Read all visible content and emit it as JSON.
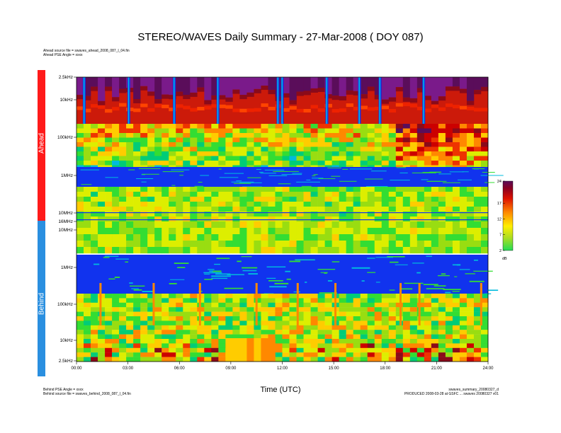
{
  "title": "STEREO/WAVES Daily Summary - 27-Mar-2008 ( DOY 087)",
  "header_info": {
    "line1": "Ahead source file = swaves_ahead_2008_087_l_04.fin",
    "line2": "Ahead PSE Angle = xxxx"
  },
  "footer_left": {
    "line1": "Behind PSE Angle = xxxx",
    "line2": "Behind source file = swaves_behind_2008_087_l_04.fin"
  },
  "footer_right": {
    "line1": "swaves_summary_20080327_d",
    "line2": "PRODUCED 2008-03-28 at GSFC ... swaves 20080327 v01"
  },
  "colors": {
    "ahead_band": "#ff1a1a",
    "behind_band": "#2a8fe0"
  },
  "chart_data": {
    "type": "heatmap",
    "title": "STEREO/WAVES Daily Summary - 27-Mar-2008 ( DOY 087)",
    "xlabel": "Time (UTC)",
    "x_ticks": [
      "00:00",
      "03:00",
      "06:00",
      "09:00",
      "12:00",
      "15:00",
      "18:00",
      "21:00",
      "24:00"
    ],
    "xlim_hours": [
      0,
      24
    ],
    "panels": [
      {
        "name": "Ahead",
        "y_ticks": [
          "2.5kHz",
          "10kHz",
          "100kHz",
          "1MHz",
          "10MHz",
          "16MHz"
        ],
        "ylim": [
          "2.5 kHz",
          "16 MHz"
        ]
      },
      {
        "name": "Behind",
        "y_ticks": [
          "10MHz",
          "1MHz",
          "100kHz",
          "10kHz",
          "2.5kHz"
        ],
        "ylim": [
          "16 MHz",
          "2.5 kHz"
        ]
      }
    ],
    "colorbar": {
      "unit": "dB",
      "ticks": [
        24,
        17,
        12,
        7,
        2
      ],
      "range": [
        2,
        24
      ],
      "colormap": "rainbow"
    },
    "ahead_dropout_hours": [
      0.45,
      3.05,
      5.7,
      8.25,
      11.75,
      12.0,
      14.6,
      16.5,
      17.7,
      20.25
    ],
    "behind_spike_hours": [
      1.4,
      4.5,
      7.2,
      10.5,
      12.9,
      15.1,
      18.9,
      20.0,
      23.6
    ]
  }
}
